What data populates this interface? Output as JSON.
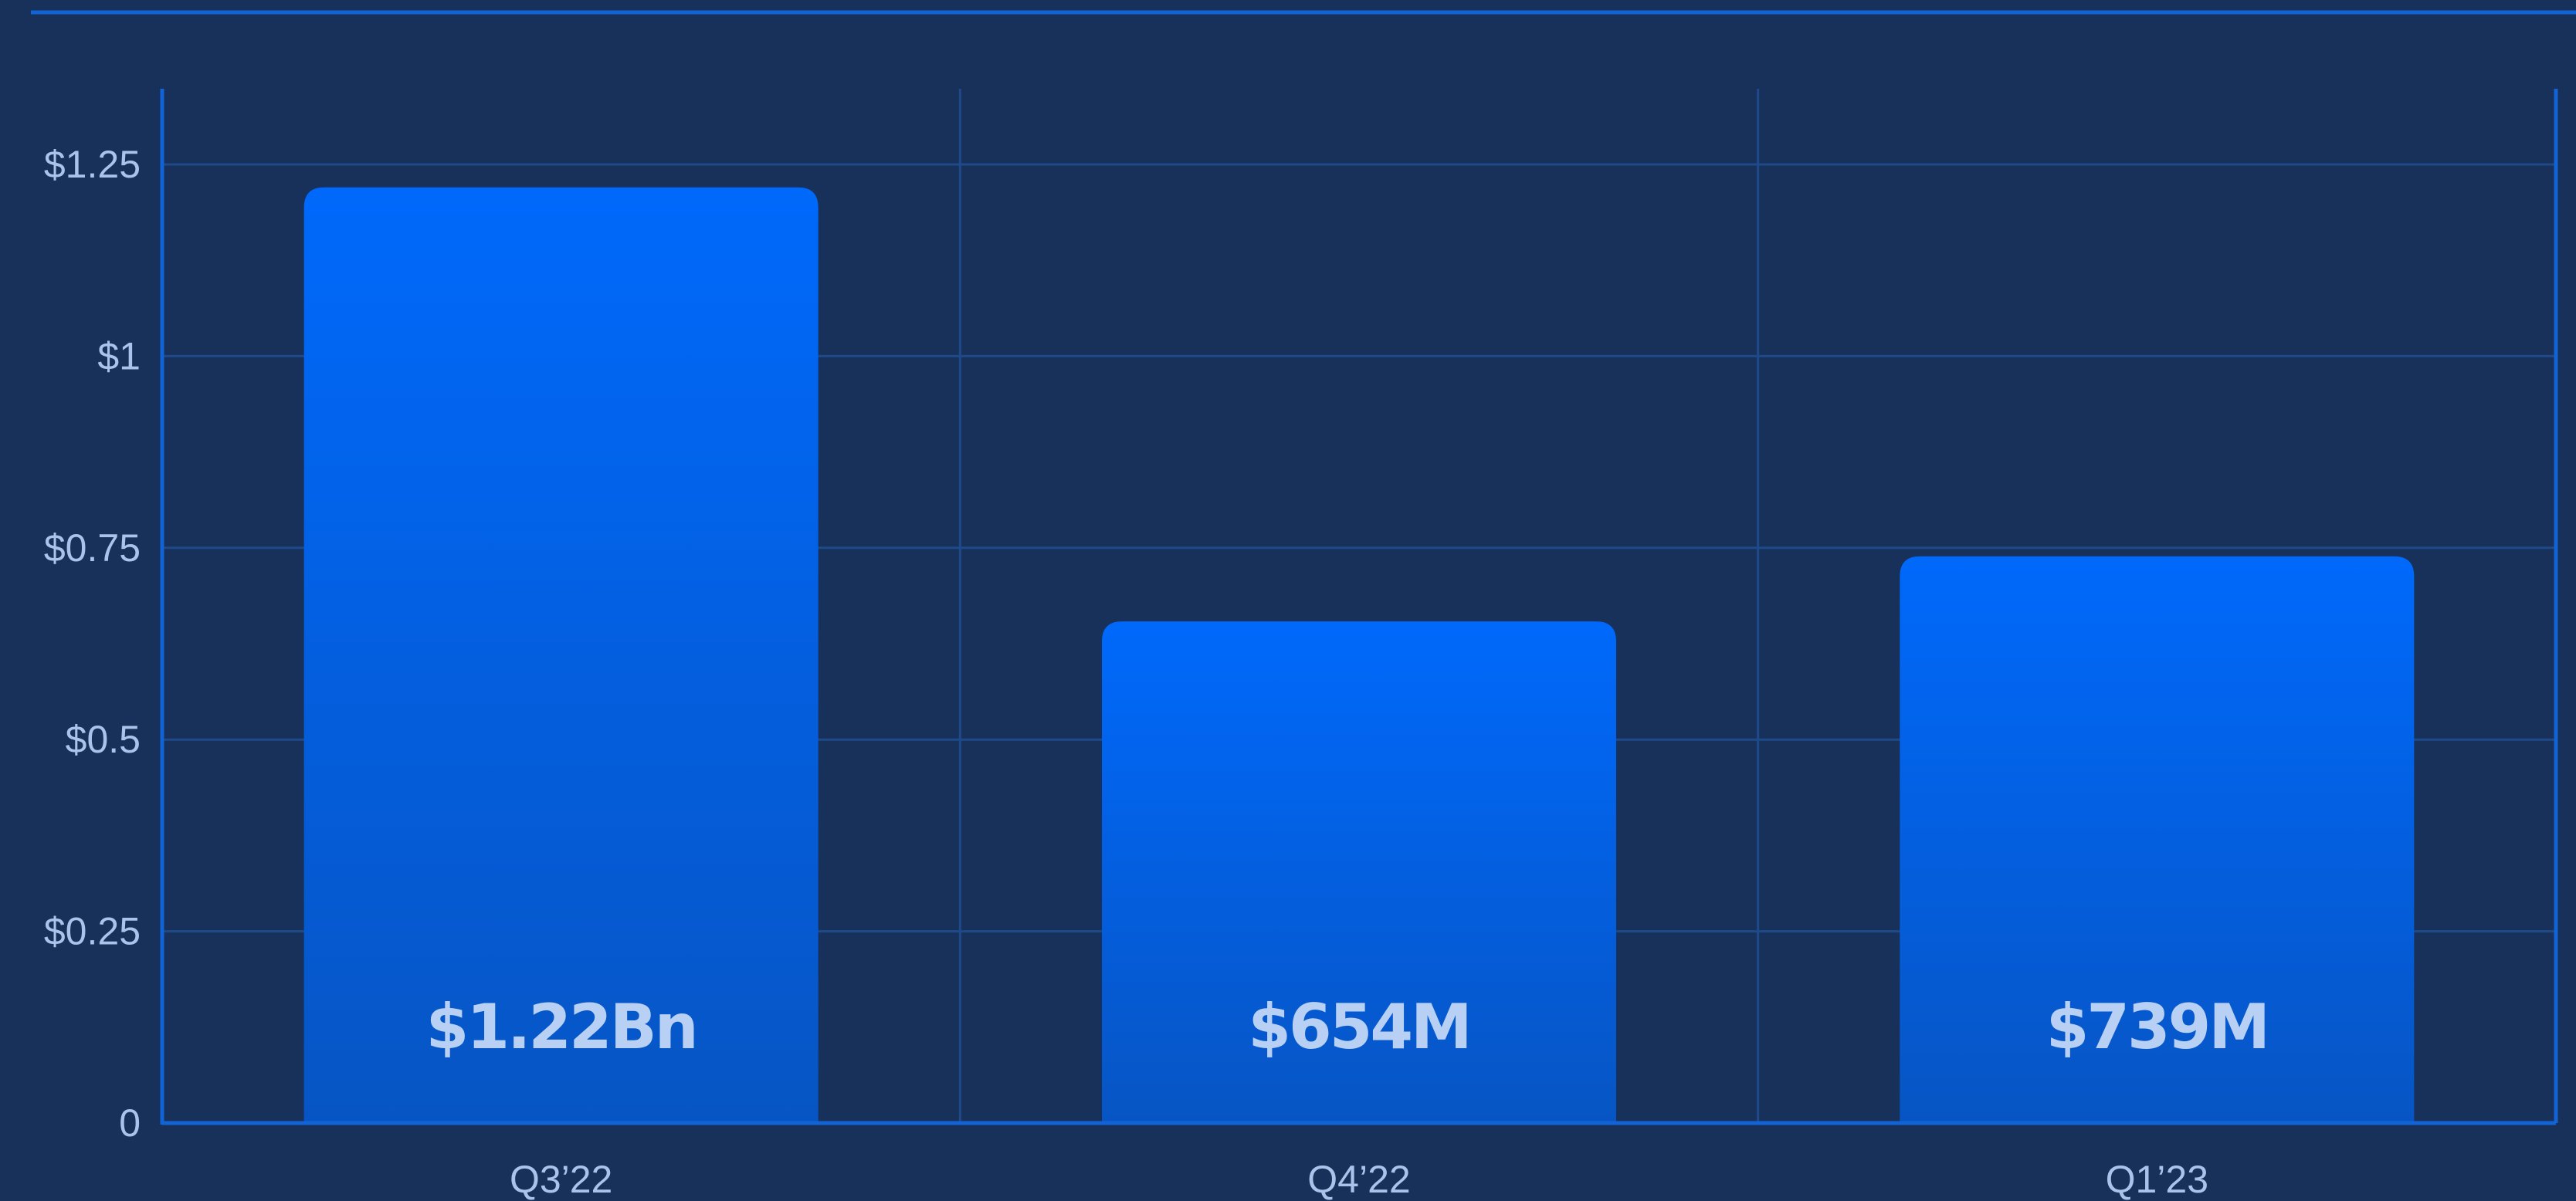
{
  "colors": {
    "background": "#17315a",
    "bar_top": "#0069fb",
    "bar_bottom": "#0755c4",
    "axis": "#1263d6",
    "grid": "#1f4a8a",
    "tick_text": "#a9c3ea",
    "bar_label_text": "#b7d0f3"
  },
  "chart_data": {
    "type": "bar",
    "title": "",
    "xlabel": "",
    "ylabel": "",
    "categories": [
      "Q3’22",
      "Q4’22",
      "Q1’23"
    ],
    "values": [
      1.22,
      0.654,
      0.739
    ],
    "data_labels": [
      "$1.22Bn",
      "$654M",
      "$739M"
    ],
    "ylim": [
      0,
      1.25
    ],
    "yticks": [
      0,
      0.25,
      0.5,
      0.75,
      1,
      1.25
    ],
    "ytick_labels": [
      "0",
      "$0.25",
      "$0.5",
      "$0.75",
      "$1",
      "$1.25"
    ],
    "grid": true,
    "legend": "none"
  }
}
